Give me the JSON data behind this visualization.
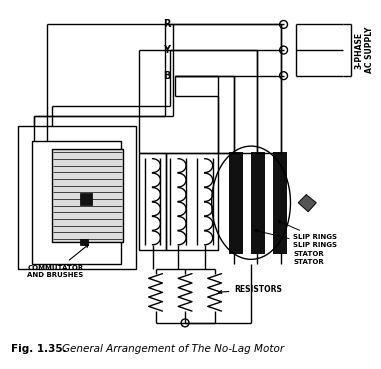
{
  "bg_color": "#ffffff",
  "line_color": "#000000",
  "fig_label": "Fig. 1.35.",
  "fig_caption": "General Arrangement of The No-Lag Motor",
  "supply_labels": [
    "R",
    "Y",
    "B"
  ],
  "supply_text": "3-PHASE\nAC SUPPLY",
  "slip_label1": "SLIP RINGS",
  "slip_label2": "STATOR",
  "comm_label": "COMMUTATOR\nAND BRUSHES",
  "res_label": "RESISTORS"
}
